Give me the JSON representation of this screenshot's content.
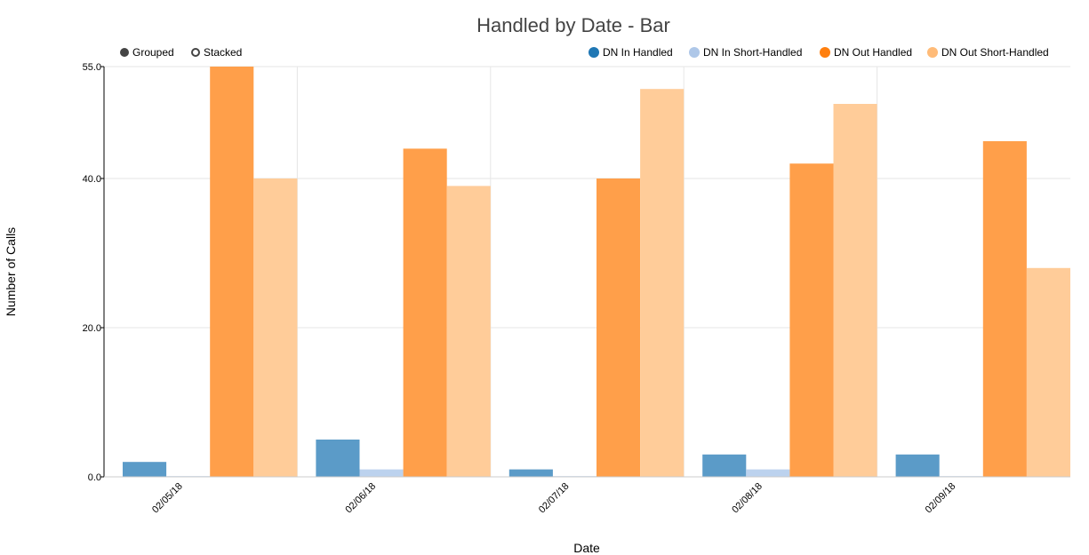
{
  "chart_data": {
    "type": "bar",
    "title": "Handled by Date - Bar",
    "xlabel": "Date",
    "ylabel": "Number of Calls",
    "ylim": [
      0,
      55
    ],
    "yticks": [
      "0.0",
      "20.0",
      "40.0",
      "55.0"
    ],
    "ytick_values": [
      0,
      20,
      40,
      55
    ],
    "categories": [
      "02/05/18",
      "02/06/18",
      "02/07/18",
      "02/08/18",
      "02/09/18"
    ],
    "series": [
      {
        "name": "DN In Handled",
        "color": "#5b9bc8",
        "legend_color": "#1f77b4",
        "values": [
          2,
          5,
          1,
          3,
          3
        ]
      },
      {
        "name": "DN In Short-Handled",
        "color": "#bcd2ee",
        "legend_color": "#aec7e8",
        "values": [
          0,
          1,
          0,
          1,
          0
        ]
      },
      {
        "name": "DN Out Handled",
        "color": "#ff9f4a",
        "legend_color": "#ff7f0e",
        "values": [
          55,
          44,
          40,
          42,
          45
        ]
      },
      {
        "name": "DN Out Short-Handled",
        "color": "#ffcc99",
        "legend_color": "#ffbb78",
        "values": [
          40,
          39,
          52,
          50,
          28
        ]
      }
    ],
    "mode_options": [
      "Grouped",
      "Stacked"
    ],
    "selected_mode": "Grouped",
    "grid": true,
    "legend_position": "top-right"
  }
}
